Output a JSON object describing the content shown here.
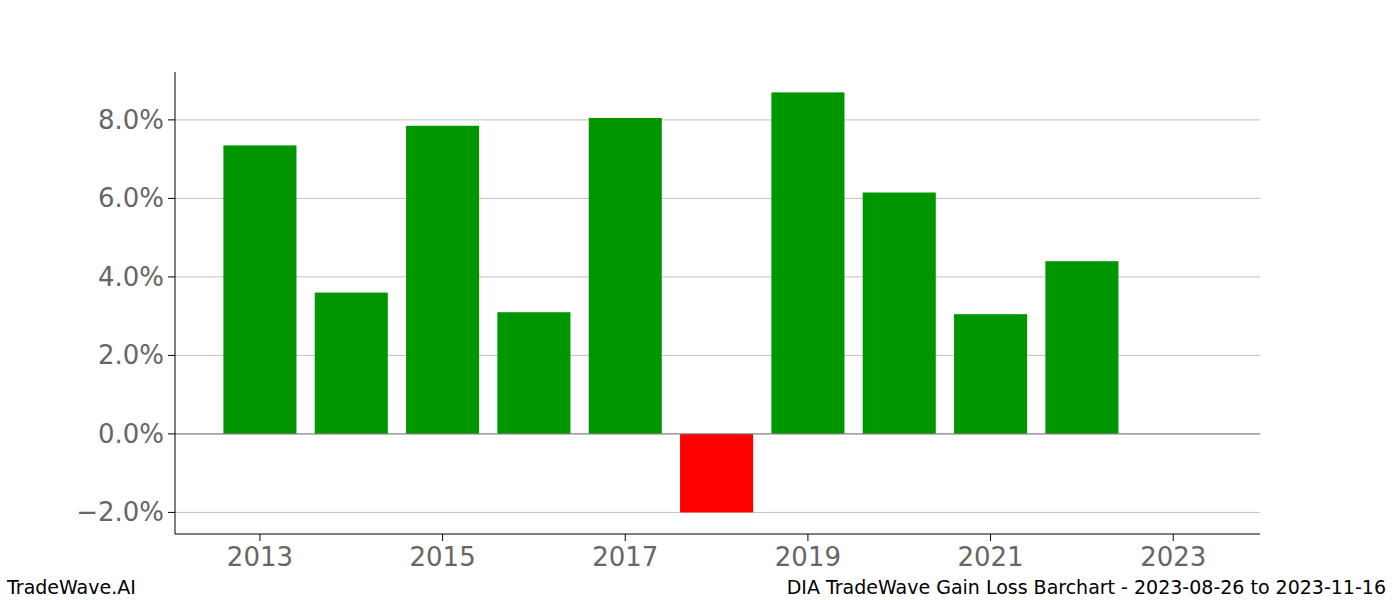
{
  "chart_data": {
    "type": "bar",
    "title": "DIA TradeWave Gain Loss Barchart - 2023-08-26 to 2023-11-16",
    "subtitle": "TradeWave.AI",
    "x": [
      2013,
      2014,
      2015,
      2016,
      2017,
      2018,
      2019,
      2020,
      2021,
      2022
    ],
    "values": [
      7.35,
      3.6,
      7.85,
      3.1,
      8.05,
      -2.0,
      8.7,
      6.15,
      3.05,
      4.4
    ],
    "colors": [
      "#009600",
      "#009600",
      "#009600",
      "#009600",
      "#009600",
      "#ff0000",
      "#009600",
      "#009600",
      "#009600",
      "#009600"
    ],
    "xlim": [
      2012.07,
      2023.95
    ],
    "xticks": [
      2013,
      2015,
      2017,
      2019,
      2021,
      2023
    ],
    "ylim": [
      -2.55,
      9.22
    ],
    "yticks": [
      {
        "value": -2,
        "label": "−2.0%"
      },
      {
        "value": 0,
        "label": "0.0%"
      },
      {
        "value": 2,
        "label": "2.0%"
      },
      {
        "value": 4,
        "label": "4.0%"
      },
      {
        "value": 6,
        "label": "6.0%"
      },
      {
        "value": 8,
        "label": "8.0%"
      }
    ],
    "grid": true
  }
}
